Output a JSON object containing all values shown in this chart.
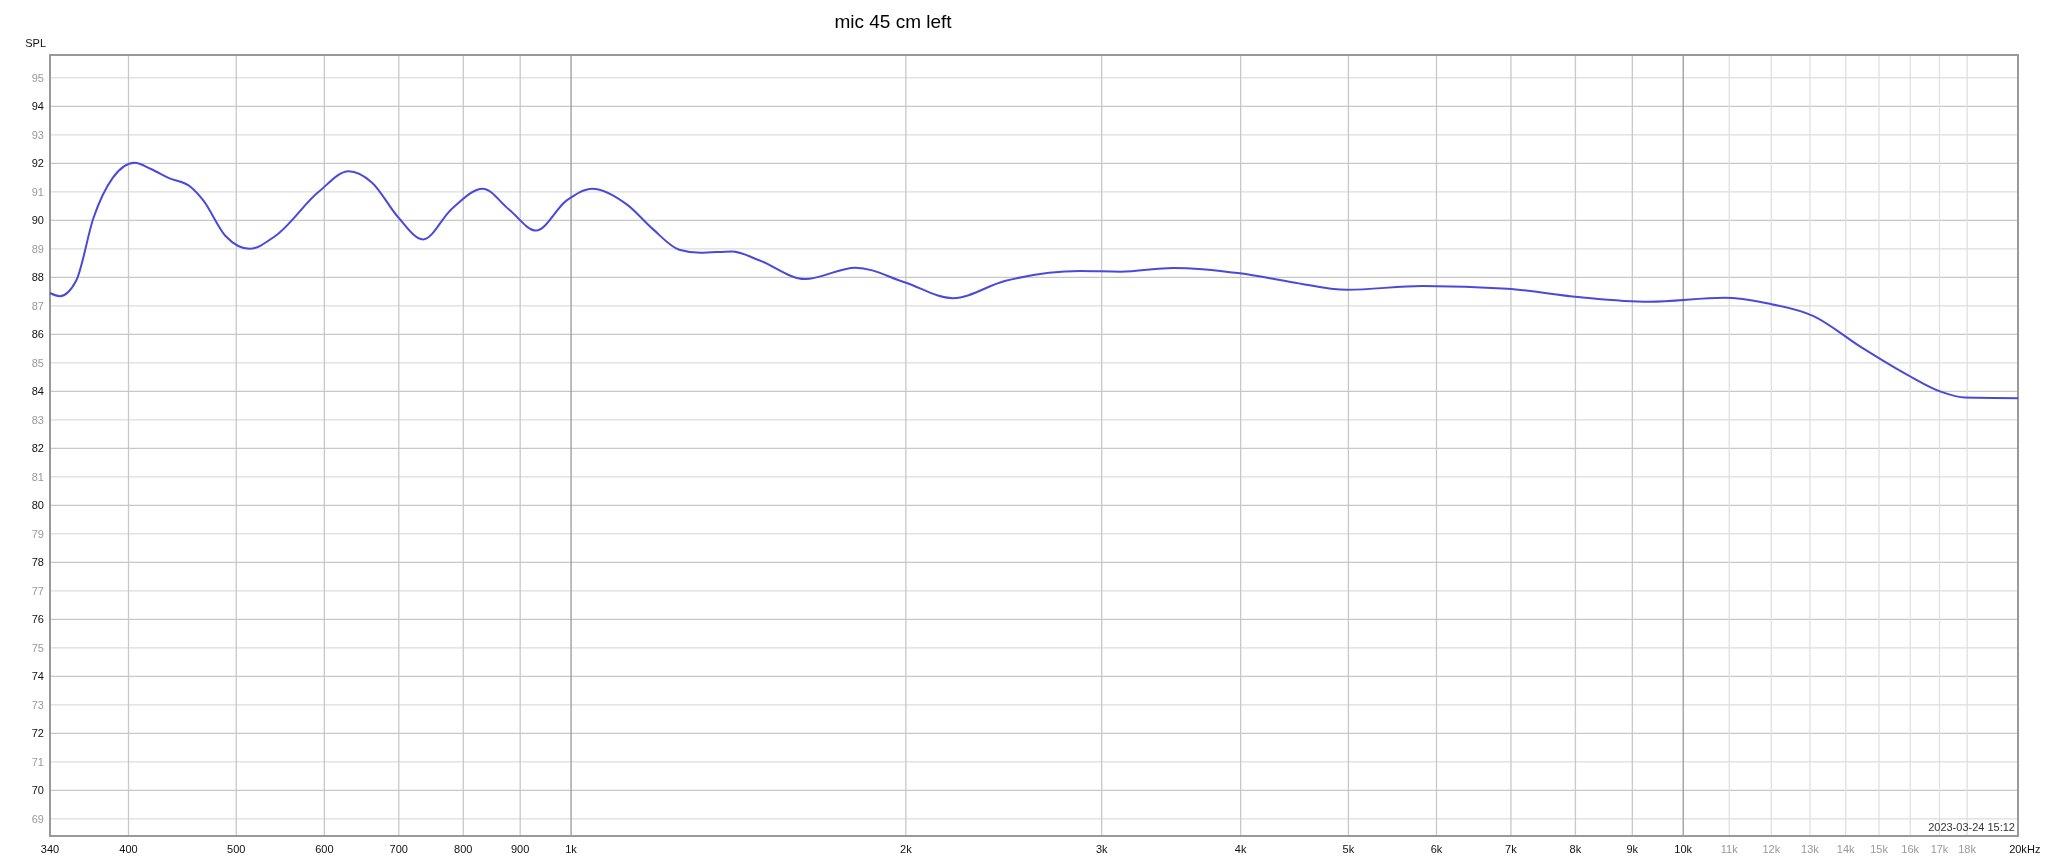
{
  "chart_data": {
    "type": "line",
    "title": "mic 45 cm left",
    "ylabel": "SPL",
    "x": [
      340,
      347,
      359,
      372,
      387,
      405,
      419,
      435,
      455,
      467,
      489,
      514,
      542,
      593,
      631,
      662,
      700,
      736,
      781,
      833,
      879,
      930,
      991,
      1045,
      1123,
      1184,
      1251,
      1308,
      1395,
      1474,
      1623,
      1802,
      1994,
      2204,
      2459,
      2871,
      3120,
      3479,
      3995,
      4450,
      4988,
      5829,
      6949,
      8045,
      9320,
      10887,
      11893,
      13097,
      14454,
      15922,
      17068,
      17915,
      20000
    ],
    "series": [
      {
        "color": "#4a4ad8",
        "values": [
          87.45,
          87.34,
          87.89,
          90.08,
          91.48,
          92.02,
          91.8,
          91.48,
          91.17,
          90.7,
          89.45,
          89.0,
          89.45,
          91.0,
          91.72,
          91.33,
          90.08,
          89.33,
          90.4,
          91.11,
          90.39,
          89.64,
          90.7,
          91.11,
          90.55,
          89.7,
          88.97,
          88.86,
          88.91,
          88.61,
          87.94,
          88.34,
          87.83,
          87.27,
          87.88,
          88.22,
          88.2,
          88.33,
          88.14,
          87.83,
          87.56,
          87.7,
          87.6,
          87.31,
          87.14,
          87.28,
          87.09,
          86.64,
          85.55,
          84.57,
          83.98,
          83.78,
          83.76
        ]
      }
    ],
    "log": "x",
    "xlim": [
      340,
      20000
    ],
    "ylim": [
      68.4,
      95.8
    ],
    "xticks": [
      340,
      400,
      500,
      600,
      700,
      800,
      900,
      {
        "value": 1000,
        "label": "1k"
      },
      {
        "value": 2000,
        "label": "2k"
      },
      {
        "value": 3000,
        "label": "3k"
      },
      {
        "value": 4000,
        "label": "4k"
      },
      {
        "value": 5000,
        "label": "5k"
      },
      {
        "value": 6000,
        "label": "6k"
      },
      {
        "value": 7000,
        "label": "7k"
      },
      {
        "value": 8000,
        "label": "8k"
      },
      {
        "value": 9000,
        "label": "9k"
      },
      {
        "value": 10000,
        "label": "10k"
      },
      {
        "value": 11000,
        "label": "11k"
      },
      {
        "value": 12000,
        "label": "12k"
      },
      {
        "value": 13000,
        "label": "13k"
      },
      {
        "value": 14000,
        "label": "14k"
      },
      {
        "value": 15000,
        "label": "15k"
      },
      {
        "value": 16000,
        "label": "16k"
      },
      {
        "value": 17000,
        "label": "17k"
      },
      {
        "value": 18000,
        "label": "18k"
      },
      {
        "value": 20000,
        "label": "20k"
      }
    ],
    "xlabel": "Hz",
    "yticks": [
      69,
      70,
      71,
      72,
      73,
      74,
      75,
      76,
      77,
      78,
      79,
      80,
      81,
      82,
      83,
      84,
      85,
      86,
      87,
      88,
      89,
      90,
      91,
      92,
      93,
      94,
      95
    ],
    "grid": true,
    "annotations": [
      "2023-03-24 15:12"
    ]
  }
}
